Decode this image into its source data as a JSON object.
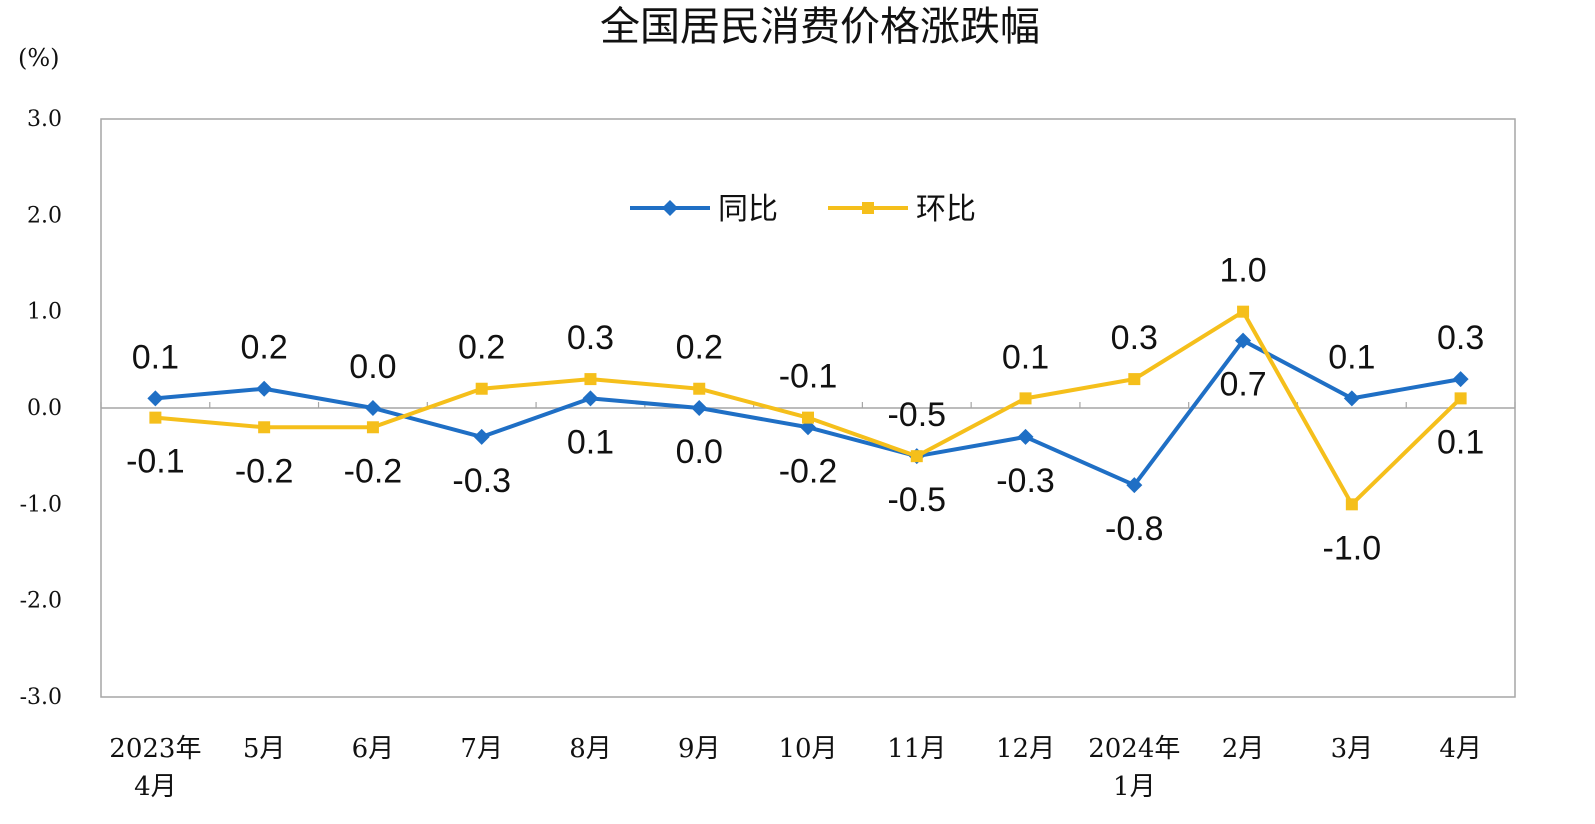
{
  "chart_data": {
    "type": "line",
    "title": "全国居民消费价格涨跌幅",
    "unit_label": "(%)",
    "ylim": [
      -3.0,
      3.0
    ],
    "y_ticks": [
      "3.0",
      "2.0",
      "1.0",
      "0.0",
      "-1.0",
      "-2.0",
      "-3.0"
    ],
    "y_tick_values": [
      3,
      2,
      1,
      0,
      -1,
      -2,
      -3
    ],
    "categories": [
      [
        "2023年",
        "4月"
      ],
      [
        "5月"
      ],
      [
        "6月"
      ],
      [
        "7月"
      ],
      [
        "8月"
      ],
      [
        "9月"
      ],
      [
        "10月"
      ],
      [
        "11月"
      ],
      [
        "12月"
      ],
      [
        "2024年",
        "1月"
      ],
      [
        "2月"
      ],
      [
        "3月"
      ],
      [
        "4月"
      ]
    ],
    "series": [
      {
        "name": "同比",
        "color": "#1f6fc5",
        "marker": "diamond",
        "values": [
          0.1,
          0.2,
          0.0,
          -0.3,
          0.1,
          0.0,
          -0.2,
          -0.5,
          -0.3,
          -0.8,
          0.7,
          0.1,
          0.3
        ],
        "labels": [
          "0.1",
          "0.2",
          "0.0",
          "-0.3",
          "0.1",
          "0.0",
          "-0.2",
          "-0.5",
          "-0.3",
          "-0.8",
          "0.7",
          "0.1",
          "0.3"
        ],
        "label_pos": [
          "above",
          "above",
          "above",
          "below",
          "below",
          "below",
          "below",
          "below",
          "below",
          "below",
          "below",
          "above",
          "above"
        ]
      },
      {
        "name": "环比",
        "color": "#f5bf1b",
        "marker": "square",
        "values": [
          -0.1,
          -0.2,
          -0.2,
          0.2,
          0.3,
          0.2,
          -0.1,
          -0.5,
          0.1,
          0.3,
          1.0,
          -1.0,
          0.1
        ],
        "labels": [
          "-0.1",
          "-0.2",
          "-0.2",
          "0.2",
          "0.3",
          "0.2",
          "-0.1",
          "-0.5",
          "0.1",
          "0.3",
          "1.0",
          "-1.0",
          "0.1"
        ],
        "label_pos": [
          "below",
          "below",
          "below",
          "above",
          "above",
          "above",
          "above",
          "above",
          "above",
          "above",
          "above",
          "below",
          "below"
        ]
      }
    ],
    "legend": "top-center",
    "grid": false,
    "zero_line": true
  }
}
